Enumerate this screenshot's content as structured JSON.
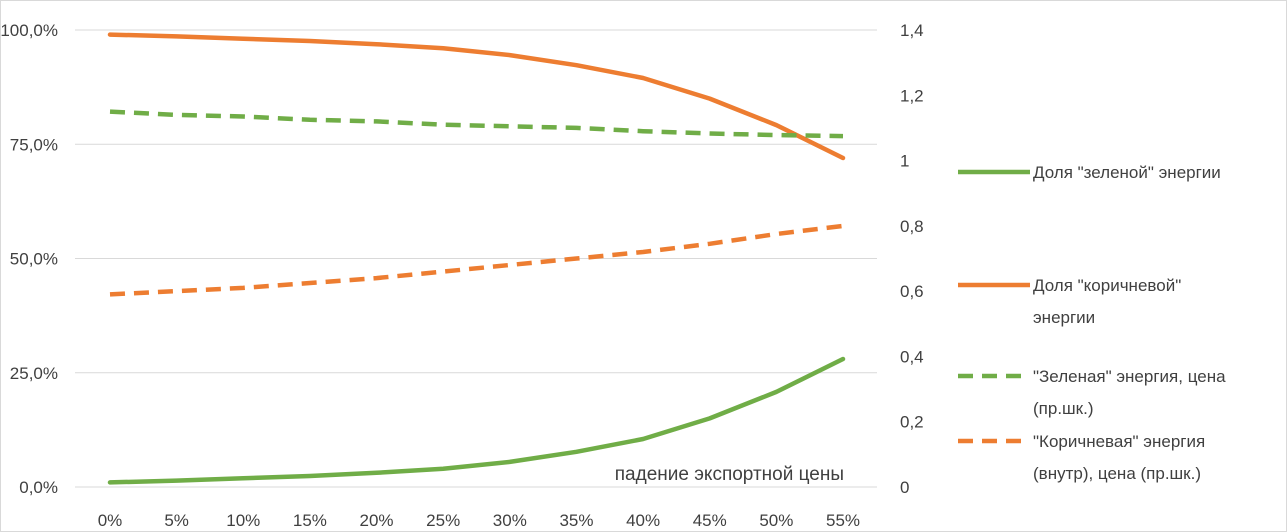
{
  "chart_data": {
    "type": "line",
    "categories": [
      "0%",
      "5%",
      "10%",
      "15%",
      "20%",
      "25%",
      "30%",
      "35%",
      "40%",
      "45%",
      "50%",
      "55%"
    ],
    "y_left": {
      "ticks": [
        0,
        25,
        50,
        75,
        100
      ],
      "tick_labels": [
        "0,0%",
        "25,0%",
        "50,0%",
        "75,0%",
        "100,0%"
      ],
      "range": [
        0,
        100
      ]
    },
    "y_right": {
      "ticks": [
        0,
        0.2,
        0.4,
        0.6,
        0.8,
        1,
        1.2,
        1.4
      ],
      "tick_labels": [
        "0",
        "0,2",
        "0,4",
        "0,6",
        "0,8",
        "1",
        "1,2",
        "1,4"
      ],
      "range": [
        0,
        1.4
      ]
    },
    "annotation": "падение экспортной цены",
    "grid": "horizontal",
    "legend_position": "right",
    "series": [
      {
        "name": "Доля \"зеленой\" энергии",
        "legend_lines": [
          "Доля \"зеленой\" энергии"
        ],
        "axis": "left",
        "style": "solid",
        "color": "#70AD47",
        "values": [
          1.0,
          1.4,
          1.9,
          2.4,
          3.1,
          4.0,
          5.5,
          7.7,
          10.5,
          15.0,
          20.8,
          28.0
        ]
      },
      {
        "name": "Доля \"коричневой\" энергии",
        "legend_lines": [
          "Доля \"коричневой\"",
          "энергии"
        ],
        "axis": "left",
        "style": "solid",
        "color": "#ED7D31",
        "values": [
          99.0,
          98.6,
          98.1,
          97.6,
          96.9,
          96.0,
          94.5,
          92.3,
          89.5,
          85.0,
          79.2,
          72.0
        ]
      },
      {
        "name": "\"Зеленая\" энергия, цена (пр.шк.)",
        "legend_lines": [
          "\"Зеленая\" энергия, цена",
          "(пр.шк.)"
        ],
        "axis": "right",
        "style": "dashed",
        "color": "#70AD47",
        "values": [
          1.15,
          1.14,
          1.135,
          1.125,
          1.12,
          1.11,
          1.105,
          1.1,
          1.09,
          1.083,
          1.078,
          1.075
        ]
      },
      {
        "name": "\"Коричневая\" энергия (внутр), цена (пр.шк.)",
        "legend_lines": [
          "\"Коричневая\" энергия",
          "(внутр), цена (пр.шк.)"
        ],
        "axis": "right",
        "style": "dashed",
        "color": "#ED7D31",
        "values": [
          0.59,
          0.6,
          0.61,
          0.625,
          0.64,
          0.66,
          0.68,
          0.7,
          0.72,
          0.745,
          0.775,
          0.8
        ]
      }
    ]
  }
}
